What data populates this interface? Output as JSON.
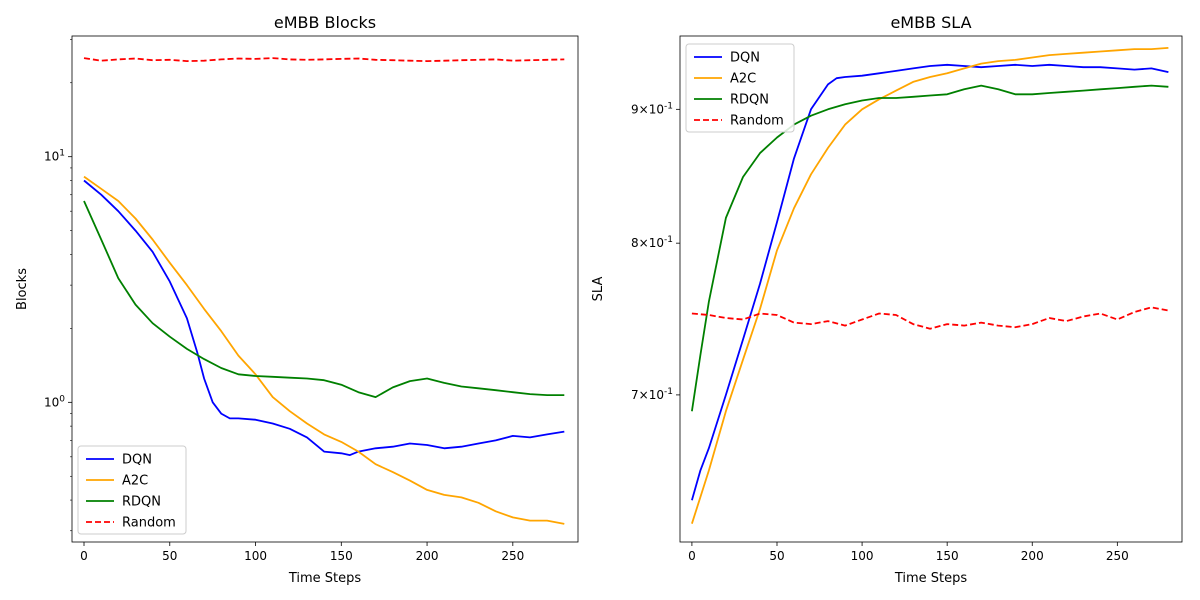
{
  "chart_data": [
    {
      "type": "line",
      "title": "eMBB Blocks",
      "xlabel": "Time Steps",
      "ylabel": "Blocks",
      "xlim": [
        -7,
        288
      ],
      "ylim": [
        0.27,
        31
      ],
      "yscale": "log",
      "xticks": [
        0,
        50,
        100,
        150,
        200,
        250
      ],
      "xtick_labels": [
        "0",
        "50",
        "100",
        "150",
        "200",
        "250"
      ],
      "yticks": [
        1,
        10
      ],
      "ytick_labels": [
        "10^0",
        "10^1"
      ],
      "legend": {
        "placement": "lower-left",
        "entries": [
          "DQN",
          "A2C",
          "RDQN",
          "Random"
        ]
      },
      "grid": false,
      "series": [
        {
          "name": "DQN",
          "color": "#0000ff",
          "dash": "solid",
          "x": [
            0,
            10,
            20,
            30,
            40,
            50,
            60,
            66,
            70,
            75,
            80,
            85,
            90,
            100,
            110,
            120,
            130,
            140,
            150,
            155,
            160,
            170,
            180,
            190,
            200,
            210,
            220,
            230,
            240,
            250,
            260,
            270,
            280
          ],
          "y": [
            8.0,
            7.0,
            6.0,
            5.0,
            4.1,
            3.1,
            2.2,
            1.6,
            1.25,
            1.0,
            0.9,
            0.86,
            0.86,
            0.85,
            0.82,
            0.78,
            0.72,
            0.63,
            0.62,
            0.61,
            0.63,
            0.65,
            0.66,
            0.68,
            0.67,
            0.65,
            0.66,
            0.68,
            0.7,
            0.73,
            0.72,
            0.74,
            0.76
          ]
        },
        {
          "name": "A2C",
          "color": "#ffa500",
          "dash": "solid",
          "x": [
            0,
            10,
            20,
            30,
            40,
            50,
            60,
            70,
            80,
            90,
            100,
            110,
            120,
            130,
            140,
            150,
            160,
            170,
            180,
            190,
            200,
            210,
            220,
            230,
            240,
            250,
            260,
            270,
            280
          ],
          "y": [
            8.3,
            7.4,
            6.6,
            5.6,
            4.6,
            3.7,
            3.0,
            2.4,
            1.95,
            1.55,
            1.3,
            1.05,
            0.92,
            0.82,
            0.74,
            0.69,
            0.63,
            0.56,
            0.52,
            0.48,
            0.44,
            0.42,
            0.41,
            0.39,
            0.36,
            0.34,
            0.33,
            0.33,
            0.32
          ]
        },
        {
          "name": "RDQN",
          "color": "#008000",
          "dash": "solid",
          "x": [
            0,
            10,
            20,
            30,
            40,
            50,
            60,
            70,
            80,
            90,
            100,
            110,
            120,
            130,
            140,
            150,
            160,
            170,
            180,
            190,
            200,
            210,
            220,
            230,
            240,
            250,
            260,
            270,
            280
          ],
          "y": [
            6.6,
            4.6,
            3.2,
            2.5,
            2.1,
            1.85,
            1.65,
            1.5,
            1.38,
            1.3,
            1.28,
            1.27,
            1.26,
            1.25,
            1.23,
            1.18,
            1.1,
            1.05,
            1.15,
            1.22,
            1.25,
            1.2,
            1.16,
            1.14,
            1.12,
            1.1,
            1.08,
            1.07,
            1.07
          ]
        },
        {
          "name": "Random",
          "color": "#ff0000",
          "dash": "dashed",
          "x": [
            0,
            10,
            20,
            30,
            40,
            50,
            60,
            70,
            80,
            90,
            100,
            110,
            120,
            130,
            140,
            150,
            160,
            170,
            180,
            190,
            200,
            210,
            220,
            230,
            240,
            250,
            260,
            270,
            280
          ],
          "y": [
            25.2,
            24.6,
            24.9,
            25.1,
            24.7,
            24.8,
            24.5,
            24.6,
            24.9,
            25.1,
            25.0,
            25.2,
            24.9,
            24.8,
            24.9,
            25.0,
            25.1,
            24.8,
            24.7,
            24.6,
            24.5,
            24.6,
            24.7,
            24.8,
            24.9,
            24.6,
            24.7,
            24.8,
            24.9
          ]
        }
      ]
    },
    {
      "type": "line",
      "title": "eMBB SLA",
      "xlabel": "Time Steps",
      "ylabel": "SLA",
      "xlim": [
        -7,
        288
      ],
      "ylim": [
        0.615,
        0.96
      ],
      "yscale": "log",
      "xticks": [
        0,
        50,
        100,
        150,
        200,
        250
      ],
      "xtick_labels": [
        "0",
        "50",
        "100",
        "150",
        "200",
        "250"
      ],
      "yticks": [
        0.7,
        0.8,
        0.9
      ],
      "ytick_labels": [
        "7×10^-1",
        "8×10^-1",
        "9×10^-1"
      ],
      "legend": {
        "placement": "upper-left",
        "entries": [
          "DQN",
          "A2C",
          "RDQN",
          "Random"
        ]
      },
      "grid": false,
      "series": [
        {
          "name": "DQN",
          "color": "#0000ff",
          "dash": "solid",
          "x": [
            0,
            5,
            10,
            20,
            30,
            40,
            50,
            60,
            70,
            80,
            85,
            90,
            100,
            110,
            120,
            130,
            140,
            150,
            160,
            170,
            180,
            190,
            200,
            210,
            220,
            230,
            240,
            250,
            260,
            270,
            280
          ],
          "y": [
            0.638,
            0.655,
            0.668,
            0.7,
            0.735,
            0.772,
            0.815,
            0.862,
            0.9,
            0.92,
            0.925,
            0.926,
            0.927,
            0.929,
            0.931,
            0.933,
            0.935,
            0.936,
            0.935,
            0.934,
            0.935,
            0.936,
            0.935,
            0.936,
            0.935,
            0.934,
            0.934,
            0.933,
            0.932,
            0.933,
            0.93
          ]
        },
        {
          "name": "A2C",
          "color": "#ffa500",
          "dash": "solid",
          "x": [
            0,
            10,
            20,
            30,
            40,
            50,
            60,
            70,
            80,
            90,
            100,
            110,
            120,
            130,
            140,
            150,
            160,
            170,
            180,
            190,
            200,
            210,
            220,
            230,
            240,
            250,
            260,
            270,
            280
          ],
          "y": [
            0.625,
            0.655,
            0.69,
            0.722,
            0.755,
            0.795,
            0.825,
            0.85,
            0.87,
            0.888,
            0.9,
            0.908,
            0.915,
            0.922,
            0.926,
            0.929,
            0.933,
            0.937,
            0.939,
            0.94,
            0.942,
            0.944,
            0.945,
            0.946,
            0.947,
            0.948,
            0.949,
            0.949,
            0.95
          ]
        },
        {
          "name": "RDQN",
          "color": "#008000",
          "dash": "solid",
          "x": [
            0,
            5,
            10,
            20,
            30,
            40,
            50,
            60,
            70,
            80,
            90,
            100,
            110,
            120,
            130,
            140,
            150,
            160,
            170,
            180,
            190,
            200,
            210,
            220,
            230,
            240,
            250,
            260,
            270,
            280
          ],
          "y": [
            0.69,
            0.725,
            0.76,
            0.818,
            0.848,
            0.866,
            0.878,
            0.888,
            0.895,
            0.9,
            0.904,
            0.907,
            0.909,
            0.909,
            0.91,
            0.911,
            0.912,
            0.916,
            0.919,
            0.916,
            0.912,
            0.912,
            0.913,
            0.914,
            0.915,
            0.916,
            0.917,
            0.918,
            0.919,
            0.918
          ]
        },
        {
          "name": "Random",
          "color": "#ff0000",
          "dash": "dashed",
          "x": [
            0,
            10,
            20,
            30,
            40,
            50,
            60,
            70,
            80,
            90,
            100,
            110,
            120,
            130,
            140,
            150,
            160,
            170,
            180,
            190,
            200,
            210,
            220,
            230,
            240,
            250,
            260,
            270,
            280
          ],
          "y": [
            0.752,
            0.751,
            0.749,
            0.748,
            0.752,
            0.751,
            0.746,
            0.745,
            0.747,
            0.744,
            0.748,
            0.752,
            0.751,
            0.745,
            0.742,
            0.745,
            0.744,
            0.746,
            0.744,
            0.743,
            0.745,
            0.749,
            0.747,
            0.75,
            0.752,
            0.748,
            0.753,
            0.756,
            0.754
          ]
        }
      ]
    }
  ]
}
